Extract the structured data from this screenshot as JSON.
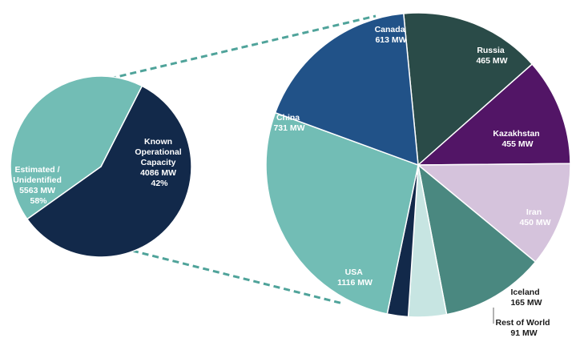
{
  "chart_data": [
    {
      "type": "pie",
      "slices": [
        {
          "name": "Estimated / Unidentified",
          "value": 5563,
          "unit": "MW",
          "percent": "58%",
          "color": "#12294a",
          "text_color": "#ffffff"
        },
        {
          "name": "Known Operational Capacity",
          "value": 4086,
          "unit": "MW",
          "percent": "42%",
          "color": "#72bdb5",
          "text_color": "#ffffff"
        }
      ]
    },
    {
      "type": "pie",
      "slices": [
        {
          "name": "Canada",
          "value": 613,
          "unit": "MW",
          "color": "#2a4b48",
          "text_color": "#ffffff"
        },
        {
          "name": "Russia",
          "value": 465,
          "unit": "MW",
          "color": "#521566",
          "text_color": "#ffffff"
        },
        {
          "name": "Kazakhstan",
          "value": 455,
          "unit": "MW",
          "color": "#d5c3dc",
          "text_color": "#ffffff"
        },
        {
          "name": "Iran",
          "value": 450,
          "unit": "MW",
          "color": "#4a8880",
          "text_color": "#ffffff"
        },
        {
          "name": "Iceland",
          "value": 165,
          "unit": "MW",
          "color": "#c7e5e2",
          "text_color": "#1a1a1a"
        },
        {
          "name": "Rest of World",
          "value": 91,
          "unit": "MW",
          "color": "#12294a",
          "text_color": "#1a1a1a"
        },
        {
          "name": "USA",
          "value": 1116,
          "unit": "MW",
          "color": "#72bdb5",
          "text_color": "#ffffff"
        },
        {
          "name": "China",
          "value": 731,
          "unit": "MW",
          "color": "#215288",
          "text_color": "#ffffff"
        }
      ]
    }
  ],
  "labels": {
    "small_unidentified": [
      "Estimated /",
      "Unidentified",
      "5563 MW",
      "58%"
    ],
    "small_known": [
      "Known",
      "Operational",
      "Capacity",
      "4086 MW",
      "42%"
    ],
    "canada": [
      "Canada",
      "613 MW"
    ],
    "russia": [
      "Russia",
      "465 MW"
    ],
    "kazakhstan": [
      "Kazakhstan",
      "455 MW"
    ],
    "iran": [
      "Iran",
      "450 MW"
    ],
    "iceland": [
      "Iceland",
      "165 MW"
    ],
    "rest_of_world": [
      "Rest of World",
      "91 MW"
    ],
    "usa": [
      "USA",
      "1116 MW"
    ],
    "china": [
      "China",
      "731 MW"
    ]
  },
  "connector_color": "#4fa39a"
}
